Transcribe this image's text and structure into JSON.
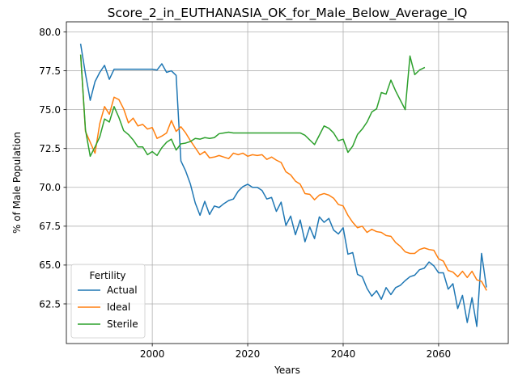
{
  "chart_data": {
    "type": "line",
    "title": "Score_2_in_EUTHANASIA_OK_for_Male_Below_Average_IQ",
    "xlabel": "Years",
    "ylabel": "% of Male Population",
    "xlim": [
      1982.0,
      2074.6
    ],
    "ylim": [
      59.95,
      80.65
    ],
    "xticks": [
      2000,
      2020,
      2040,
      2060
    ],
    "xtick_labels": [
      "2000",
      "2020",
      "2040",
      "2060"
    ],
    "yticks": [
      62.5,
      65.0,
      67.5,
      70.0,
      72.5,
      75.0,
      77.5,
      80.0
    ],
    "ytick_labels": [
      "62.5",
      "65.0",
      "67.5",
      "70.0",
      "72.5",
      "75.0",
      "77.5",
      "80.0"
    ],
    "grid": true,
    "legend_title": "Fertility",
    "legend_position": "lower left",
    "series": [
      {
        "name": "Actual",
        "color": "#1f77b4",
        "x": [
          1985,
          1986,
          1987,
          1988,
          1989,
          1990,
          1991,
          1992,
          1993,
          1994,
          1995,
          1996,
          1997,
          1998,
          1999,
          2000,
          2001,
          2002,
          2003,
          2004,
          2005,
          2006,
          2007,
          2008,
          2009,
          2010,
          2011,
          2012,
          2013,
          2014,
          2015,
          2016,
          2017,
          2018,
          2019,
          2020,
          2021,
          2022,
          2023,
          2024,
          2025,
          2026,
          2027,
          2028,
          2029,
          2030,
          2031,
          2032,
          2033,
          2034,
          2035,
          2036,
          2037,
          2038,
          2039,
          2040,
          2041,
          2042,
          2043,
          2044,
          2045,
          2046,
          2047,
          2048,
          2049,
          2050,
          2051,
          2052,
          2053,
          2054,
          2055,
          2056,
          2057,
          2058,
          2059,
          2060,
          2061,
          2062,
          2063,
          2064,
          2065,
          2066,
          2067,
          2068,
          2069,
          2070
        ],
        "y": [
          79.2,
          77.3,
          75.6,
          76.8,
          77.4,
          77.85,
          76.95,
          77.6,
          77.6,
          77.6,
          77.6,
          77.6,
          77.6,
          77.6,
          77.6,
          77.6,
          77.55,
          77.95,
          77.4,
          77.5,
          77.2,
          71.7,
          71.05,
          70.2,
          69.0,
          68.2,
          69.1,
          68.25,
          68.8,
          68.7,
          68.95,
          69.15,
          69.25,
          69.75,
          70.05,
          70.2,
          70.0,
          70.0,
          69.8,
          69.25,
          69.35,
          68.45,
          69.05,
          67.55,
          68.15,
          66.95,
          67.9,
          66.5,
          67.45,
          66.7,
          68.1,
          67.75,
          68.0,
          67.25,
          67.0,
          67.4,
          65.7,
          65.8,
          64.4,
          64.25,
          63.5,
          63.0,
          63.35,
          62.8,
          63.55,
          63.1,
          63.55,
          63.7,
          64.0,
          64.25,
          64.35,
          64.7,
          64.8,
          65.2,
          64.95,
          64.5,
          64.5,
          63.45,
          63.8,
          62.2,
          63.05,
          61.3,
          62.9,
          61.05,
          65.75,
          63.6
        ]
      },
      {
        "name": "Ideal",
        "color": "#ff7f0e",
        "x": [
          1985,
          1986,
          1987,
          1988,
          1989,
          1990,
          1991,
          1992,
          1993,
          1994,
          1995,
          1996,
          1997,
          1998,
          1999,
          2000,
          2001,
          2002,
          2003,
          2004,
          2005,
          2006,
          2007,
          2008,
          2009,
          2010,
          2011,
          2012,
          2013,
          2014,
          2015,
          2016,
          2017,
          2018,
          2019,
          2020,
          2021,
          2022,
          2023,
          2024,
          2025,
          2026,
          2027,
          2028,
          2029,
          2030,
          2031,
          2032,
          2033,
          2034,
          2035,
          2036,
          2037,
          2038,
          2039,
          2040,
          2041,
          2042,
          2043,
          2044,
          2045,
          2046,
          2047,
          2048,
          2049,
          2050,
          2051,
          2052,
          2053,
          2054,
          2055,
          2056,
          2057,
          2058,
          2059,
          2060,
          2061,
          2062,
          2063,
          2064,
          2065,
          2066,
          2067,
          2068,
          2069,
          2070
        ],
        "y": [
          78.5,
          73.6,
          72.9,
          72.2,
          74.1,
          75.2,
          74.7,
          75.8,
          75.65,
          75.05,
          74.15,
          74.45,
          73.95,
          74.05,
          73.75,
          73.85,
          73.15,
          73.3,
          73.5,
          74.3,
          73.6,
          73.9,
          73.5,
          73.0,
          72.55,
          72.1,
          72.3,
          71.9,
          71.95,
          72.05,
          71.95,
          71.85,
          72.2,
          72.1,
          72.2,
          72.0,
          72.1,
          72.05,
          72.1,
          71.8,
          71.95,
          71.75,
          71.6,
          71.0,
          70.8,
          70.4,
          70.2,
          69.6,
          69.55,
          69.2,
          69.5,
          69.6,
          69.5,
          69.3,
          68.9,
          68.8,
          68.2,
          67.75,
          67.4,
          67.5,
          67.1,
          67.3,
          67.15,
          67.1,
          66.9,
          66.85,
          66.45,
          66.2,
          65.85,
          65.75,
          65.75,
          66.0,
          66.1,
          66.0,
          65.95,
          65.4,
          65.25,
          64.65,
          64.55,
          64.25,
          64.6,
          64.2,
          64.6,
          64.05,
          63.95,
          63.4
        ]
      },
      {
        "name": "Sterile",
        "color": "#2ca02c",
        "x": [
          1985,
          1986,
          1987,
          1988,
          1989,
          1990,
          1991,
          1992,
          1993,
          1994,
          1995,
          1996,
          1997,
          1998,
          1999,
          2000,
          2001,
          2002,
          2003,
          2004,
          2005,
          2006,
          2007,
          2008,
          2009,
          2010,
          2011,
          2012,
          2013,
          2014,
          2015,
          2016,
          2017,
          2018,
          2019,
          2020,
          2021,
          2022,
          2023,
          2024,
          2025,
          2026,
          2027,
          2028,
          2029,
          2030,
          2031,
          2032,
          2033,
          2034,
          2035,
          2036,
          2037,
          2038,
          2039,
          2040,
          2041,
          2042,
          2043,
          2044,
          2045,
          2046,
          2047,
          2048,
          2049,
          2050,
          2051,
          2052,
          2053,
          2054,
          2055,
          2056,
          2057
        ],
        "y": [
          78.5,
          73.7,
          72.0,
          72.6,
          73.25,
          74.4,
          74.2,
          75.2,
          74.5,
          73.65,
          73.4,
          73.05,
          72.6,
          72.6,
          72.1,
          72.3,
          72.05,
          72.55,
          72.9,
          73.1,
          72.4,
          72.8,
          72.85,
          72.95,
          73.15,
          73.1,
          73.2,
          73.15,
          73.2,
          73.45,
          73.5,
          73.55,
          73.5,
          73.5,
          73.5,
          73.5,
          73.5,
          73.5,
          73.5,
          73.5,
          73.5,
          73.5,
          73.5,
          73.5,
          73.5,
          73.5,
          73.5,
          73.35,
          73.05,
          72.75,
          73.35,
          73.95,
          73.8,
          73.5,
          73.0,
          73.1,
          72.25,
          72.65,
          73.4,
          73.75,
          74.2,
          74.85,
          75.05,
          76.1,
          76.0,
          76.9,
          76.2,
          75.6,
          75.0,
          78.45,
          77.25,
          77.55,
          77.7
        ]
      }
    ]
  }
}
